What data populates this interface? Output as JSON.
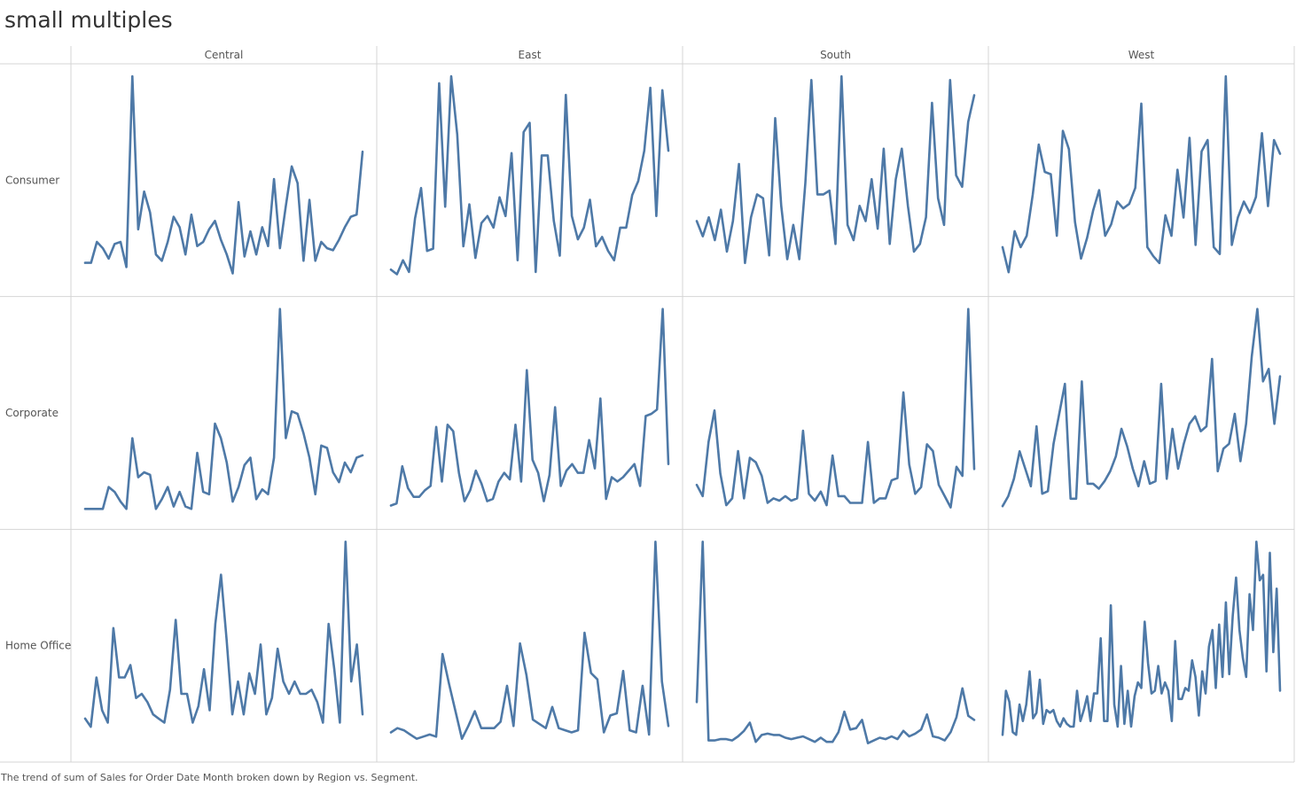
{
  "title": "small multiples",
  "caption": "The trend of sum of Sales for Order Date Month broken down by Region vs. Segment.",
  "colors": {
    "line": "#4e79a7",
    "grid": "#d4d4d4"
  },
  "chart_data": {
    "type": "line",
    "columns": [
      "Central",
      "East",
      "South",
      "West"
    ],
    "rows": [
      "Consumer",
      "Corporate",
      "Home Office"
    ],
    "x_unit": "month",
    "ylim": [
      0,
      100
    ],
    "grid": true,
    "cells": [
      [
        {
          "column": "Central",
          "row": "Consumer",
          "values": [
            11,
            11,
            21,
            18,
            13,
            20,
            21,
            9,
            100,
            27,
            45,
            35,
            15,
            12,
            21,
            33,
            28,
            15,
            34,
            19,
            21,
            27,
            31,
            22,
            15,
            6,
            40,
            14,
            26,
            15,
            28,
            19,
            51,
            18,
            38,
            57,
            49,
            12,
            41,
            12,
            21,
            18,
            17,
            22,
            28,
            33,
            34,
            64
          ]
        },
        {
          "column": "East",
          "row": "Consumer",
          "values": [
            7,
            5,
            11,
            6,
            29,
            42,
            15,
            16,
            87,
            34,
            90,
            65,
            17,
            35,
            12,
            27,
            30,
            25,
            38,
            30,
            57,
            11,
            66,
            70,
            6,
            56,
            56,
            28,
            13,
            82,
            30,
            20,
            25,
            37,
            17,
            21,
            15,
            11,
            25,
            25,
            39,
            45,
            58,
            85,
            30,
            84,
            58
          ]
        },
        {
          "column": "South",
          "row": "Consumer",
          "values": [
            17,
            13,
            18,
            12,
            20,
            9,
            17,
            32,
            6,
            18,
            24,
            23,
            8,
            44,
            21,
            7,
            16,
            7,
            27,
            54,
            24,
            24,
            25,
            11,
            55,
            16,
            12,
            21,
            17,
            28,
            15,
            36,
            11,
            28,
            36,
            21,
            9,
            11,
            18,
            48,
            23,
            16,
            54,
            29,
            26,
            43,
            50
          ]
        },
        {
          "column": "West",
          "row": "Consumer",
          "values": [
            17,
            6,
            24,
            17,
            22,
            40,
            62,
            50,
            49,
            22,
            68,
            60,
            28,
            12,
            21,
            33,
            42,
            22,
            27,
            37,
            34,
            36,
            43,
            80,
            17,
            13,
            10,
            31,
            22,
            51,
            30,
            65,
            18,
            59,
            64,
            17,
            14,
            92,
            18,
            30,
            37,
            32,
            39,
            67,
            35,
            64,
            58
          ]
        }
      ],
      [
        {
          "column": "Central",
          "row": "Corporate",
          "values": [
            4,
            4,
            4,
            4,
            13,
            11,
            7,
            4,
            33,
            17,
            19,
            18,
            4,
            8,
            13,
            5,
            11,
            5,
            4,
            27,
            11,
            10,
            39,
            33,
            23,
            7,
            13,
            22,
            25,
            8,
            12,
            10,
            25,
            86,
            33,
            44,
            43,
            35,
            25,
            10,
            30,
            29,
            19,
            15,
            23,
            19,
            25,
            26
          ]
        },
        {
          "column": "East",
          "row": "Corporate",
          "values": [
            6,
            7,
            24,
            14,
            10,
            10,
            13,
            15,
            42,
            17,
            43,
            40,
            21,
            8,
            13,
            22,
            16,
            8,
            9,
            17,
            21,
            18,
            43,
            17,
            68,
            27,
            21,
            8,
            20,
            51,
            15,
            22,
            25,
            21,
            21,
            36,
            23,
            55,
            9,
            19,
            17,
            19,
            22,
            25,
            15,
            47,
            48,
            50,
            96,
            25
          ]
        },
        {
          "column": "South",
          "row": "Corporate",
          "values": [
            15,
            10,
            34,
            48,
            20,
            6,
            9,
            30,
            9,
            27,
            25,
            19,
            7,
            9,
            8,
            10,
            8,
            9,
            39,
            11,
            8,
            12,
            6,
            28,
            10,
            10,
            7,
            7,
            7,
            34,
            7,
            9,
            9,
            17,
            18,
            56,
            24,
            11,
            14,
            33,
            30,
            15,
            10,
            5,
            23,
            19,
            93,
            22
          ]
        },
        {
          "column": "West",
          "row": "Corporate",
          "values": [
            5,
            9,
            16,
            27,
            20,
            13,
            37,
            10,
            11,
            30,
            42,
            54,
            8,
            8,
            55,
            14,
            14,
            12,
            15,
            19,
            25,
            36,
            29,
            20,
            13,
            23,
            14,
            15,
            54,
            16,
            36,
            20,
            30,
            38,
            41,
            35,
            37,
            64,
            19,
            28,
            30,
            42,
            23,
            38,
            65,
            84,
            55,
            60,
            38,
            57
          ]
        }
      ],
      [
        {
          "column": "Central",
          "row": "Home Office",
          "values": [
            8,
            6,
            18,
            10,
            7,
            30,
            18,
            18,
            21,
            13,
            14,
            12,
            9,
            8,
            7,
            15,
            32,
            14,
            14,
            7,
            11,
            20,
            10,
            31,
            43,
            27,
            9,
            17,
            9,
            19,
            14,
            26,
            9,
            13,
            25,
            17,
            14,
            17,
            14,
            14,
            15,
            12,
            7,
            31,
            20,
            7,
            51,
            17,
            26,
            9
          ]
        },
        {
          "column": "East",
          "row": "Home Office",
          "values": [
            9,
            11,
            10,
            8,
            6,
            7,
            8,
            7,
            46,
            32,
            19,
            6,
            12,
            19,
            11,
            11,
            11,
            14,
            31,
            12,
            51,
            36,
            15,
            13,
            11,
            21,
            11,
            10,
            9,
            10,
            56,
            37,
            34,
            9,
            17,
            18,
            38,
            10,
            9,
            31,
            8,
            99,
            33,
            12
          ]
        },
        {
          "column": "South",
          "row": "Home Office",
          "values": [
            36,
            153,
            8,
            8,
            9,
            9,
            8,
            11,
            15,
            21,
            7,
            12,
            13,
            12,
            12,
            10,
            9,
            10,
            11,
            9,
            7,
            10,
            7,
            7,
            14,
            29,
            16,
            17,
            23,
            6,
            8,
            10,
            9,
            11,
            9,
            15,
            11,
            13,
            16,
            27,
            11,
            10,
            8,
            14,
            25,
            46,
            26,
            23
          ]
        },
        {
          "column": "West",
          "row": "Home Office",
          "values": [
            6,
            22,
            18,
            7,
            6,
            17,
            11,
            17,
            29,
            12,
            14,
            26,
            10,
            15,
            14,
            15,
            11,
            9,
            12,
            10,
            9,
            9,
            22,
            11,
            15,
            20,
            11,
            21,
            21,
            41,
            11,
            11,
            53,
            17,
            9,
            31,
            10,
            22,
            9,
            20,
            25,
            23,
            47,
            32,
            21,
            22,
            31,
            21,
            25,
            22,
            11,
            40,
            19,
            19,
            23,
            22,
            33,
            27,
            13,
            29,
            21,
            38,
            44,
            23,
            46,
            27,
            54,
            28,
            49,
            63,
            44,
            34,
            27,
            57,
            44,
            76,
            62,
            64,
            29,
            72,
            36,
            59,
            22
          ]
        }
      ]
    ]
  }
}
